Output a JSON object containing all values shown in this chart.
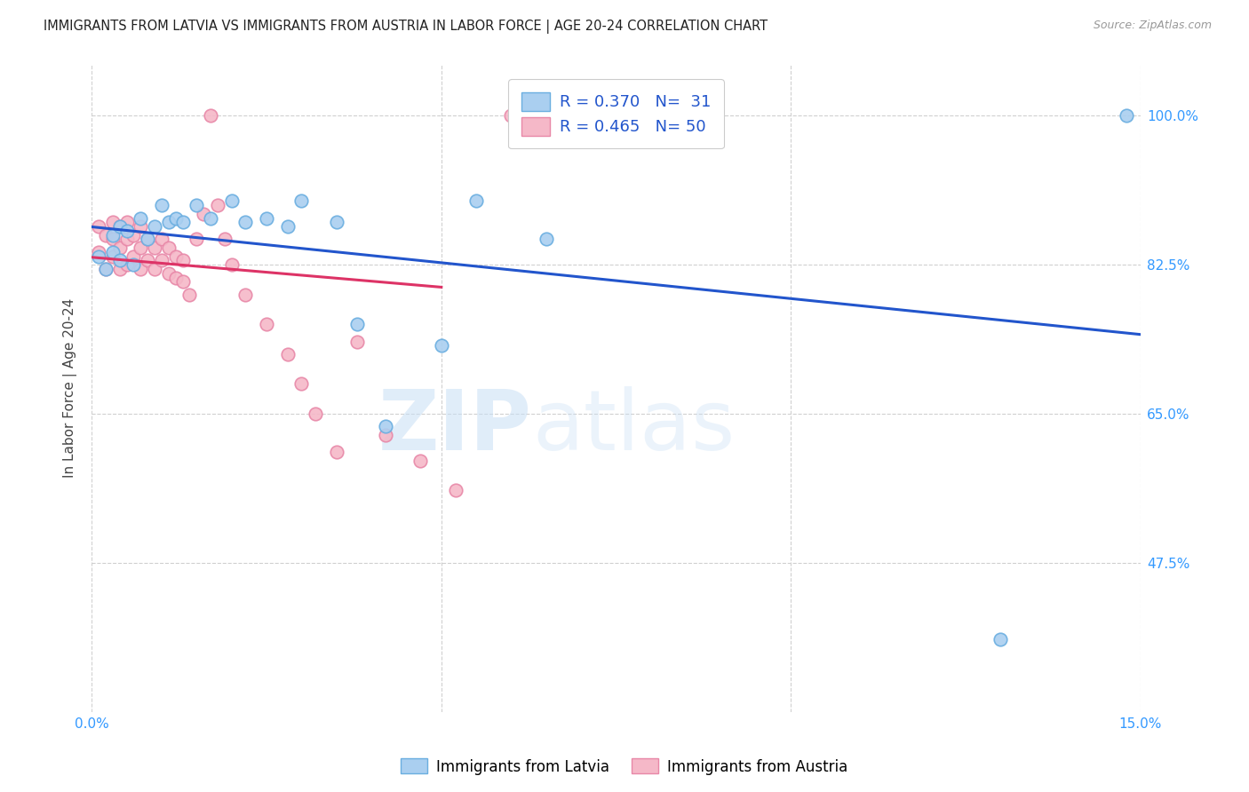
{
  "title": "IMMIGRANTS FROM LATVIA VS IMMIGRANTS FROM AUSTRIA IN LABOR FORCE | AGE 20-24 CORRELATION CHART",
  "source": "Source: ZipAtlas.com",
  "ylabel": "In Labor Force | Age 20-24",
  "xlim": [
    0.0,
    0.15
  ],
  "ylim": [
    0.3,
    1.06
  ],
  "ytick_positions": [
    0.475,
    0.65,
    0.825,
    1.0
  ],
  "ytick_labels": [
    "47.5%",
    "65.0%",
    "82.5%",
    "100.0%"
  ],
  "grid_color": "#d0d0d0",
  "background_color": "#ffffff",
  "watermark_zip": "ZIP",
  "watermark_atlas": "atlas",
  "legend_R_latvia": "0.370",
  "legend_N_latvia": "31",
  "legend_R_austria": "0.465",
  "legend_N_austria": "50",
  "latvia_color": "#aacff0",
  "austria_color": "#f5b8c8",
  "latvia_edge": "#6aaee0",
  "austria_edge": "#e888a8",
  "trendline_latvia_color": "#2255cc",
  "trendline_austria_color": "#dd3366",
  "latvia_x": [
    0.001,
    0.002,
    0.003,
    0.003,
    0.004,
    0.004,
    0.005,
    0.006,
    0.007,
    0.008,
    0.009,
    0.01,
    0.011,
    0.012,
    0.013,
    0.015,
    0.017,
    0.02,
    0.022,
    0.025,
    0.028,
    0.03,
    0.035,
    0.038,
    0.042,
    0.05,
    0.055,
    0.065,
    0.07,
    0.13,
    0.148
  ],
  "latvia_y": [
    0.835,
    0.82,
    0.84,
    0.86,
    0.83,
    0.87,
    0.865,
    0.825,
    0.88,
    0.855,
    0.87,
    0.895,
    0.875,
    0.88,
    0.875,
    0.895,
    0.88,
    0.9,
    0.875,
    0.88,
    0.87,
    0.9,
    0.875,
    0.755,
    0.635,
    0.73,
    0.9,
    0.855,
    1.0,
    0.385,
    1.0
  ],
  "austria_x": [
    0.001,
    0.001,
    0.002,
    0.002,
    0.003,
    0.003,
    0.003,
    0.004,
    0.004,
    0.004,
    0.005,
    0.005,
    0.005,
    0.006,
    0.006,
    0.007,
    0.007,
    0.007,
    0.008,
    0.008,
    0.009,
    0.009,
    0.01,
    0.01,
    0.011,
    0.011,
    0.012,
    0.012,
    0.013,
    0.013,
    0.014,
    0.015,
    0.016,
    0.017,
    0.018,
    0.019,
    0.02,
    0.022,
    0.025,
    0.028,
    0.03,
    0.032,
    0.035,
    0.038,
    0.042,
    0.047,
    0.052,
    0.06,
    0.07,
    0.08
  ],
  "austria_y": [
    0.84,
    0.87,
    0.82,
    0.86,
    0.835,
    0.855,
    0.875,
    0.82,
    0.845,
    0.87,
    0.825,
    0.855,
    0.875,
    0.835,
    0.86,
    0.82,
    0.845,
    0.87,
    0.83,
    0.855,
    0.82,
    0.845,
    0.83,
    0.855,
    0.815,
    0.845,
    0.81,
    0.835,
    0.805,
    0.83,
    0.79,
    0.855,
    0.885,
    1.0,
    0.895,
    0.855,
    0.825,
    0.79,
    0.755,
    0.72,
    0.685,
    0.65,
    0.605,
    0.735,
    0.625,
    0.595,
    0.56,
    1.0,
    1.0,
    1.0
  ]
}
